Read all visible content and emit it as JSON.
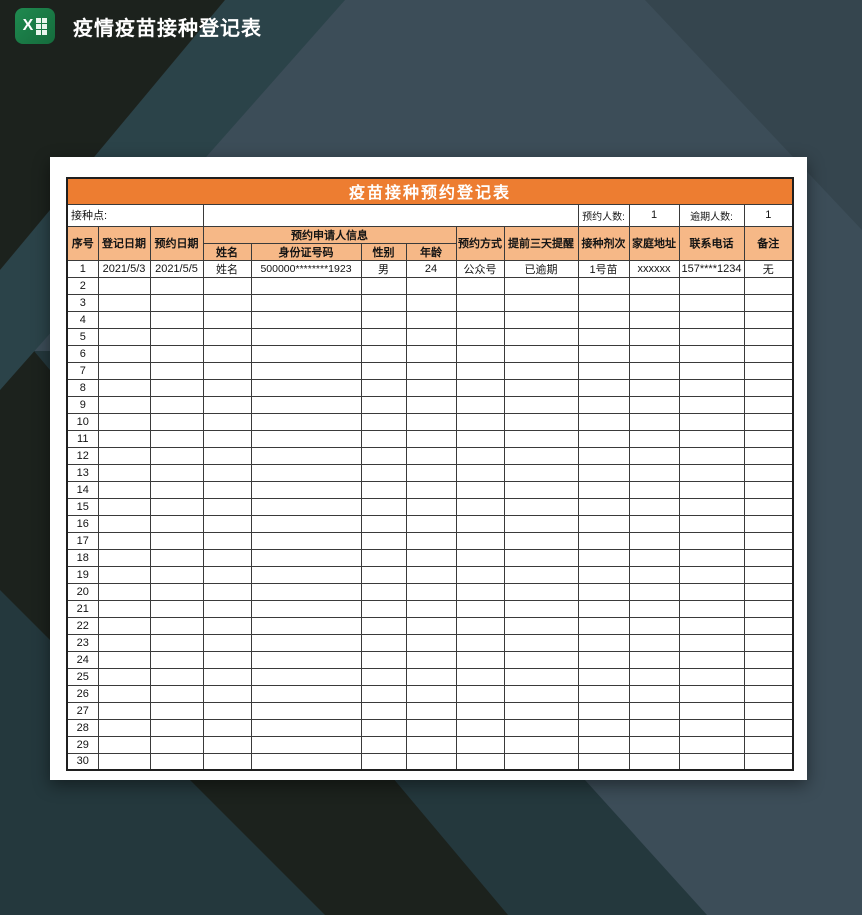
{
  "window": {
    "title": "疫情疫苗接种登记表",
    "icon": "excel-icon"
  },
  "colors": {
    "title_bar_orange": "#ed7d31",
    "header_cell_orange": "#f6b887",
    "bg_slate": "#3c4d58",
    "bg_slate_dark": "#35454e",
    "bg_teal": "#24383d",
    "bg_dark_green": "#1c221d",
    "excel_green": "#1f8a50"
  },
  "sheet": {
    "title": "疫苗接种预约登记表",
    "info_row": {
      "site_label": "接种点:",
      "site_value": "",
      "booked_label": "预约人数:",
      "booked_value": "1",
      "overdue_label": "逾期人数:",
      "overdue_value": "1"
    },
    "headers": {
      "seq": "序号",
      "reg_date": "登记日期",
      "appt_date": "预约日期",
      "applicant_group": "预约申请人信息",
      "name": "姓名",
      "id_number": "身份证号码",
      "gender": "性别",
      "age": "年龄",
      "method": "预约方式",
      "reminder": "提前三天提醒",
      "dose": "接种剂次",
      "address": "家庭地址",
      "phone": "联系电话",
      "remark": "备注"
    },
    "rows": [
      [
        "1",
        "2021/5/3",
        "2021/5/5",
        "姓名",
        "500000********1923",
        "男",
        "24",
        "公众号",
        "已逾期",
        "1号苗",
        "xxxxxx",
        "157****1234",
        "无"
      ],
      [
        "2"
      ],
      [
        "3"
      ],
      [
        "4"
      ],
      [
        "5"
      ],
      [
        "6"
      ],
      [
        "7"
      ],
      [
        "8"
      ],
      [
        "9"
      ],
      [
        "10"
      ],
      [
        "11"
      ],
      [
        "12"
      ],
      [
        "13"
      ],
      [
        "14"
      ],
      [
        "15"
      ],
      [
        "16"
      ],
      [
        "17"
      ],
      [
        "18"
      ],
      [
        "19"
      ],
      [
        "20"
      ],
      [
        "21"
      ],
      [
        "22"
      ],
      [
        "23"
      ],
      [
        "24"
      ],
      [
        "25"
      ],
      [
        "26"
      ],
      [
        "27"
      ],
      [
        "28"
      ],
      [
        "29"
      ],
      [
        "30"
      ]
    ]
  }
}
